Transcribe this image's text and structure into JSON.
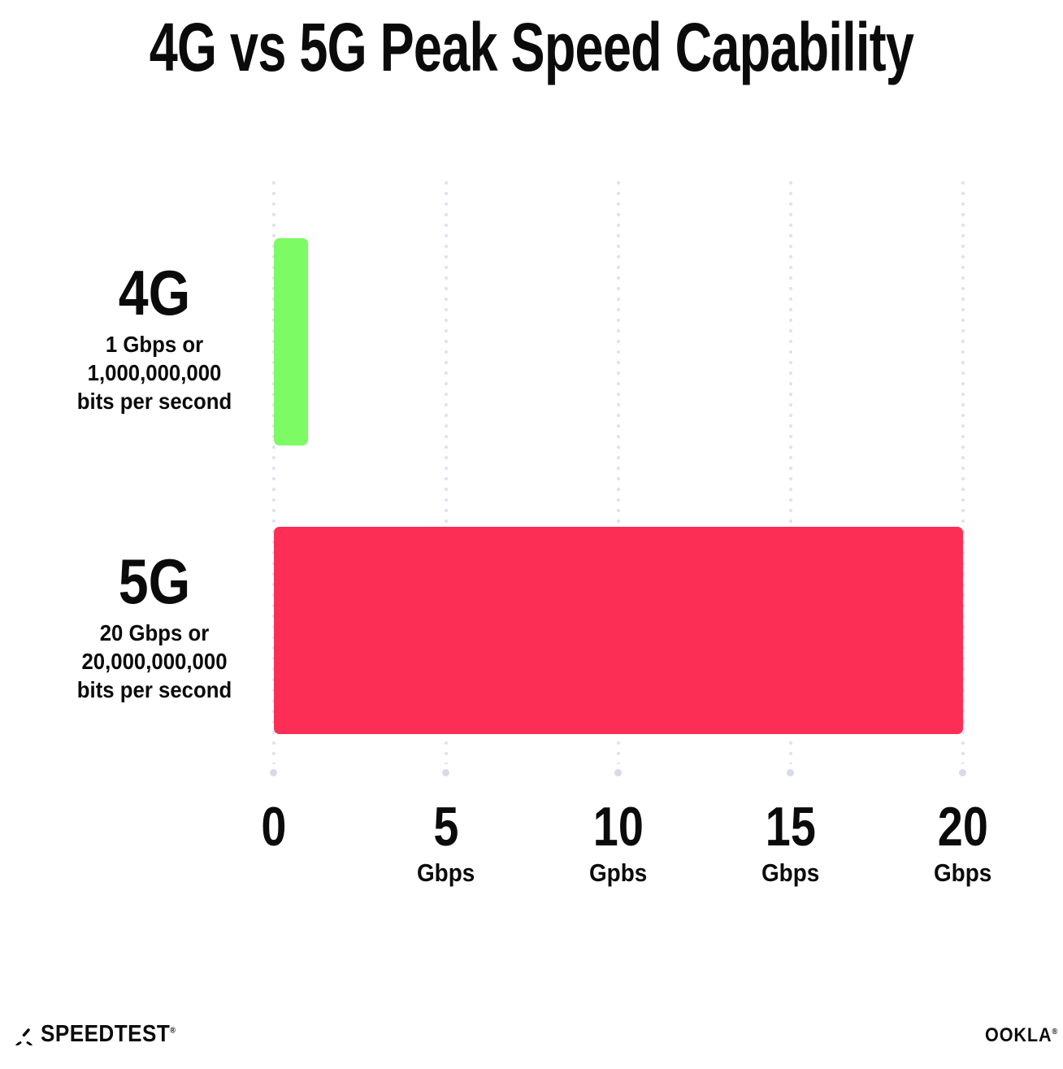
{
  "title": "4G vs 5G Peak Speed Capability",
  "chart_data": {
    "type": "bar",
    "orientation": "horizontal",
    "title": "4G vs 5G Peak Speed Capability",
    "categories": [
      "4G",
      "5G"
    ],
    "values": [
      1,
      20
    ],
    "value_unit": "Gbps",
    "xlim": [
      0,
      20
    ],
    "x_tick_values": [
      0,
      5,
      10,
      15,
      20
    ],
    "grid": "dotted vertical gridlines",
    "legend": "none",
    "bar_colors": [
      "#7DFB64",
      "#FD2E56"
    ],
    "bar_annotations": [
      "1 Gbps or 1,000,000,000 bits per second",
      "20 Gbps or 20,000,000,000 bits per second"
    ]
  },
  "rows": [
    {
      "label": "4G",
      "desc": [
        "1 Gbps or",
        "1,000,000,000",
        "bits per second"
      ]
    },
    {
      "label": "5G",
      "desc": [
        "20 Gbps or",
        "20,000,000,000",
        "bits per second"
      ]
    }
  ],
  "x_axis": {
    "ticks": [
      {
        "number": "0",
        "unit": ""
      },
      {
        "number": "5",
        "unit": "Gbps"
      },
      {
        "number": "10",
        "unit": "Gpbs"
      },
      {
        "number": "15",
        "unit": "Gbps"
      },
      {
        "number": "20",
        "unit": "Gbps"
      }
    ]
  },
  "footer": {
    "speedtest_label": "SPEEDTEST",
    "speedtest_mark": "®",
    "ookla_label": "OOKLA",
    "ookla_mark": "®"
  },
  "colors": {
    "bar_4g": "#7DFB64",
    "bar_5g": "#FD2E56",
    "grid_dot": "#DFE3EE",
    "text": "#0B0B0B",
    "background": "#FFFFFF"
  }
}
